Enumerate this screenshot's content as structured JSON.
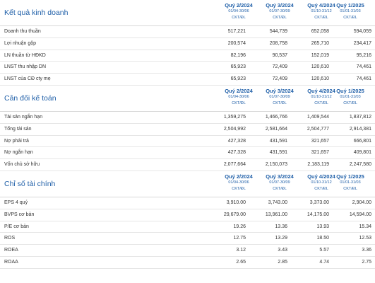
{
  "columns": [
    {
      "quarter": "Quý 2/2024",
      "dates": "01/04-30/06",
      "unit": "CKT/ĐL"
    },
    {
      "quarter": "Quý 3/2024",
      "dates": "01/07-30/09",
      "unit": "CKT/ĐL"
    },
    {
      "quarter": "Quý 4/2024",
      "dates": "01/10-31/12",
      "unit": "CKT/ĐL"
    },
    {
      "quarter": "Quý 1/2025",
      "dates": "01/01-31/03",
      "unit": "CKT/ĐL"
    }
  ],
  "sections": [
    {
      "title": "Kết quả kinh doanh",
      "rows": [
        {
          "label": "Doanh thu thuần",
          "values": [
            "517,221",
            "544,739",
            "652,058",
            "594,059"
          ]
        },
        {
          "label": "Lợi nhuận gộp",
          "values": [
            "200,574",
            "208,758",
            "265,710",
            "234,417"
          ]
        },
        {
          "label": "LN thuần từ HĐKD",
          "values": [
            "82,196",
            "90,537",
            "152,019",
            "95,216"
          ]
        },
        {
          "label": "LNST thu nhập DN",
          "values": [
            "65,923",
            "72,409",
            "120,610",
            "74,461"
          ]
        },
        {
          "label": "LNST của CĐ cty mẹ",
          "values": [
            "65,923",
            "72,409",
            "120,610",
            "74,461"
          ]
        }
      ]
    },
    {
      "title": "Cân đối kế toán",
      "rows": [
        {
          "label": "Tài sản ngắn hạn",
          "values": [
            "1,359,275",
            "1,466,766",
            "1,409,544",
            "1,837,812"
          ]
        },
        {
          "label": "Tổng tài sản",
          "values": [
            "2,504,992",
            "2,581,664",
            "2,504,777",
            "2,914,381"
          ]
        },
        {
          "label": "Nợ phải trả",
          "values": [
            "427,328",
            "431,591",
            "321,657",
            "666,801"
          ]
        },
        {
          "label": "Nợ ngắn hạn",
          "values": [
            "427,328",
            "431,591",
            "321,657",
            "409,801"
          ]
        },
        {
          "label": "Vốn chủ sở hữu",
          "values": [
            "2,077,664",
            "2,150,073",
            "2,183,119",
            "2,247,580"
          ]
        }
      ]
    },
    {
      "title": "Chỉ số tài chính",
      "rows": [
        {
          "label": "EPS 4 quý",
          "values": [
            "3,910.00",
            "3,743.00",
            "3,373.00",
            "2,904.00"
          ]
        },
        {
          "label": "BVPS cơ bản",
          "values": [
            "29,679.00",
            "13,961.00",
            "14,175.00",
            "14,594.00"
          ]
        },
        {
          "label": "P/E cơ bản",
          "values": [
            "19.26",
            "13.36",
            "13.93",
            "15.34"
          ]
        },
        {
          "label": "ROS",
          "values": [
            "12.75",
            "13.29",
            "18.50",
            "12.53"
          ]
        },
        {
          "label": "ROEA",
          "values": [
            "3.12",
            "3.43",
            "5.57",
            "3.36"
          ]
        },
        {
          "label": "ROAA",
          "values": [
            "2.65",
            "2.85",
            "4.74",
            "2.75"
          ]
        }
      ]
    }
  ]
}
